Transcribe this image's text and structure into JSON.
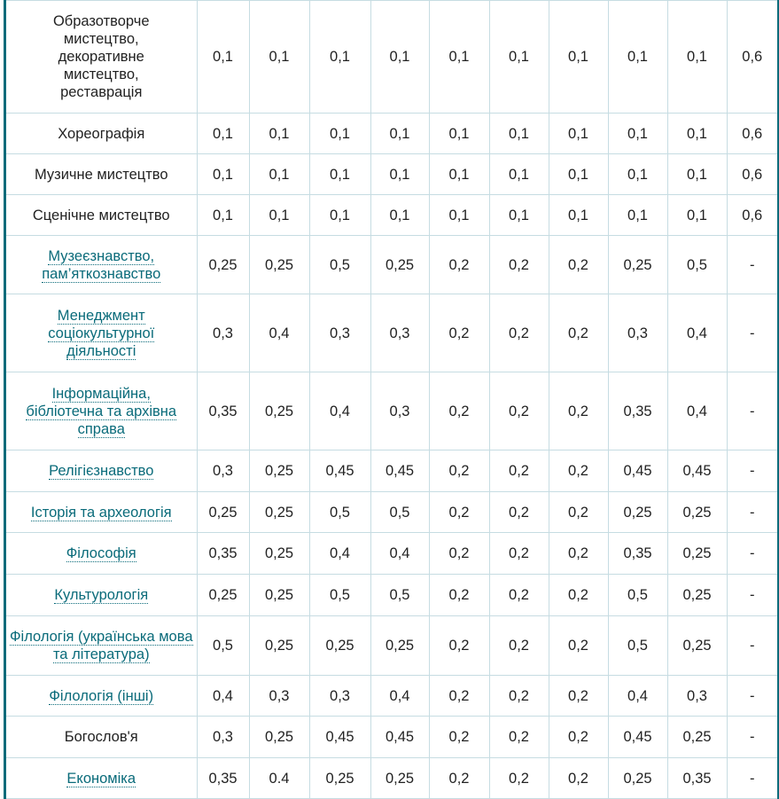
{
  "accent_color": "#0a6b7a",
  "rows": [
    {
      "name": "Образотворче мистецтво, декоративне мистецтво, реставрація",
      "link": false,
      "values": [
        "0,1",
        "0,1",
        "0,1",
        "0,1",
        "0,1",
        "0,1",
        "0,1",
        "0,1",
        "0,1",
        "0,6"
      ]
    },
    {
      "name": "Хореографія",
      "link": false,
      "values": [
        "0,1",
        "0,1",
        "0,1",
        "0,1",
        "0,1",
        "0,1",
        "0,1",
        "0,1",
        "0,1",
        "0,6"
      ]
    },
    {
      "name": "Музичне мистецтво",
      "link": false,
      "values": [
        "0,1",
        "0,1",
        "0,1",
        "0,1",
        "0,1",
        "0,1",
        "0,1",
        "0,1",
        "0,1",
        "0,6"
      ]
    },
    {
      "name": "Сценічне мистецтво",
      "link": false,
      "values": [
        "0,1",
        "0,1",
        "0,1",
        "0,1",
        "0,1",
        "0,1",
        "0,1",
        "0,1",
        "0,1",
        "0,6"
      ]
    },
    {
      "name": "Музеєзнавство, пам’яткознавство",
      "link": true,
      "values": [
        "0,25",
        "0,25",
        "0,5",
        "0,25",
        "0,2",
        "0,2",
        "0,2",
        "0,25",
        "0,5",
        "-"
      ]
    },
    {
      "name": "Менеджмент соціокультурної діяльності",
      "link": true,
      "values": [
        "0,3",
        "0,4",
        "0,3",
        "0,3",
        "0,2",
        "0,2",
        "0,2",
        "0,3",
        "0,4",
        "-"
      ]
    },
    {
      "name": "Інформаційна, бібліотечна та архівна справа",
      "link": true,
      "values": [
        "0,35",
        "0,25",
        "0,4",
        "0,3",
        "0,2",
        "0,2",
        "0,2",
        "0,35",
        "0,4",
        "-"
      ]
    },
    {
      "name": "Релігієзнавство",
      "link": true,
      "values": [
        "0,3",
        "0,25",
        "0,45",
        "0,45",
        "0,2",
        "0,2",
        "0,2",
        "0,45",
        "0,45",
        "-"
      ]
    },
    {
      "name": "Історія та археологія",
      "link": true,
      "values": [
        "0,25",
        "0,25",
        "0,5",
        "0,5",
        "0,2",
        "0,2",
        "0,2",
        "0,25",
        "0,25",
        "-"
      ]
    },
    {
      "name": "Філософія",
      "link": true,
      "values": [
        "0,35",
        "0,25",
        "0,4",
        "0,4",
        "0,2",
        "0,2",
        "0,2",
        "0,35",
        "0,25",
        "-"
      ]
    },
    {
      "name": "Культурологія",
      "link": true,
      "values": [
        "0,25",
        "0,25",
        "0,5",
        "0,5",
        "0,2",
        "0,2",
        "0,2",
        "0,5",
        "0,25",
        "-"
      ]
    },
    {
      "name": "Філологія (українська мова та література)",
      "link": true,
      "values": [
        "0,5",
        "0,25",
        "0,25",
        "0,25",
        "0,2",
        "0,2",
        "0,2",
        "0,5",
        "0,25",
        "-"
      ]
    },
    {
      "name": "Філологія (інші)",
      "link": true,
      "values": [
        "0,4",
        "0,3",
        "0,3",
        "0,4",
        "0,2",
        "0,2",
        "0,2",
        "0,4",
        "0,3",
        "-"
      ]
    },
    {
      "name": "Богослов'я",
      "link": false,
      "values": [
        "0,3",
        "0,25",
        "0,45",
        "0,45",
        "0,2",
        "0,2",
        "0,2",
        "0,45",
        "0,25",
        "-"
      ]
    },
    {
      "name": "Економіка",
      "link": true,
      "values": [
        "0,35",
        "0.4",
        "0,25",
        "0,25",
        "0,2",
        "0,2",
        "0,2",
        "0,25",
        "0,35",
        "-"
      ]
    }
  ]
}
